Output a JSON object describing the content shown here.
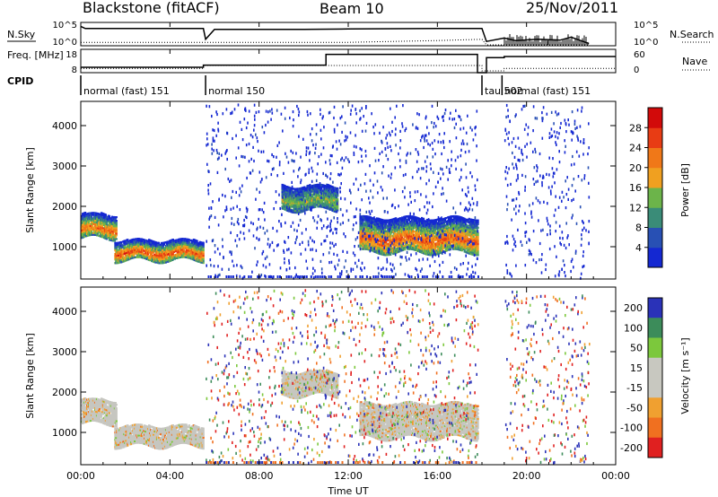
{
  "header": {
    "station": "Blackstone (fitACF)",
    "beam": "Beam 10",
    "date": "25/Nov/2011"
  },
  "colors": {
    "power_scale": [
      "#1428d2",
      "#2850b4",
      "#3a8c78",
      "#6cb44a",
      "#f0a020",
      "#f07818",
      "#e83c14",
      "#d20a0a"
    ],
    "velocity_scale": [
      "#2a32b8",
      "#3c8c5a",
      "#7cc83c",
      "#c8c8c0",
      "#c8c8c0",
      "#f0a030",
      "#f07020",
      "#e02020"
    ],
    "ground_scatter": "#c6c6c0"
  },
  "chart_data": [
    {
      "type": "line",
      "name": "noise_panel",
      "left_label": "N.Sky",
      "right_label": "N.Search",
      "left_ticks": [
        "10^5",
        "10^0"
      ],
      "right_ticks": [
        "10^5",
        "10^0"
      ],
      "series": [
        {
          "name": "N.Sky",
          "style": "solid",
          "x": [
            0.0,
            0.2,
            5.5,
            5.6,
            6.0,
            10.0,
            12.0,
            16.0,
            18.0,
            18.2,
            19.0,
            19.5,
            20.5,
            21.5,
            22.0,
            22.8
          ],
          "y": [
            4.5,
            4.0,
            4.0,
            1.5,
            3.8,
            3.8,
            3.9,
            4.0,
            4.0,
            1.0,
            1.8,
            1.2,
            1.5,
            1.3,
            2.0,
            0.5
          ]
        },
        {
          "name": "N.Search",
          "style": "dotted",
          "x": [
            0.0,
            12.0,
            16.0,
            18.0,
            18.2,
            22.8
          ],
          "y": [
            0.8,
            0.8,
            1.2,
            1.5,
            0.2,
            0.2
          ]
        }
      ],
      "xlim": [
        0,
        24
      ]
    },
    {
      "type": "line",
      "name": "freq_panel",
      "left_label": "Freq. [MHz]",
      "right_label": "Nave",
      "left_ticks": [
        "18",
        "8"
      ],
      "right_ticks": [
        "60",
        "0"
      ],
      "series": [
        {
          "name": "Freq",
          "style": "solid",
          "x": [
            0.0,
            5.5,
            5.5,
            11.0,
            11.0,
            17.8,
            17.8,
            18.2,
            18.2,
            19.0,
            19.0,
            22.8,
            22.8,
            24.0
          ],
          "y": [
            10.5,
            10.5,
            11.5,
            11.5,
            16.5,
            16.5,
            8.0,
            8.0,
            15.0,
            15.0,
            15.5,
            15.5,
            15.5,
            15.5
          ]
        },
        {
          "name": "Nave",
          "style": "dotted",
          "x": [
            0.0,
            5.5,
            5.5,
            18.0,
            18.0,
            19.0,
            19.0,
            24.0
          ],
          "y": [
            12,
            12,
            20,
            20,
            5,
            5,
            12,
            12
          ]
        }
      ],
      "xlim": [
        0,
        24
      ]
    },
    {
      "type": "table",
      "name": "cpid_panel",
      "label": "CPID",
      "segments": [
        {
          "start": 0.0,
          "end": 5.6,
          "text": "normal (fast) 151"
        },
        {
          "start": 5.6,
          "end": 18.0,
          "text": "normal 150"
        },
        {
          "start": 18.0,
          "end": 18.9,
          "text": "tau 502"
        },
        {
          "start": 18.9,
          "end": 24.0,
          "text": "normal (fast) 151"
        }
      ]
    },
    {
      "type": "heatmap",
      "name": "power_panel",
      "ylabel": "Slant Range [km]",
      "yticks": [
        1000,
        2000,
        3000,
        4000
      ],
      "ylim": [
        200,
        4600
      ],
      "xlim": [
        0,
        24
      ],
      "colorbar": {
        "label": "Power [dB]",
        "ticks": [
          4,
          8,
          12,
          16,
          20,
          24,
          28
        ],
        "range": [
          0,
          32
        ]
      },
      "echo_bands": [
        {
          "x0": 0.0,
          "x1": 1.6,
          "r0": 1200,
          "r1": 1800,
          "peak": 22
        },
        {
          "x0": 1.5,
          "x1": 5.5,
          "r0": 650,
          "r1": 1150,
          "peak": 24
        },
        {
          "x0": 9.0,
          "x1": 11.5,
          "r0": 1900,
          "r1": 2500,
          "peak": 12
        },
        {
          "x0": 12.5,
          "x1": 17.8,
          "r0": 850,
          "r1": 1700,
          "peak": 24
        }
      ],
      "noise_spans": [
        [
          5.6,
          17.8
        ],
        [
          19.0,
          22.8
        ]
      ]
    },
    {
      "type": "heatmap",
      "name": "velocity_panel",
      "ylabel": "Slant Range [km]",
      "yticks": [
        1000,
        2000,
        3000,
        4000
      ],
      "ylim": [
        200,
        4600
      ],
      "xlim": [
        0,
        24
      ],
      "colorbar": {
        "label": "Velocity [m s⁻¹]",
        "ticks": [
          "200",
          "100",
          "50",
          "15",
          "-15",
          "-50",
          "-100",
          "-200"
        ]
      },
      "echo_bands": [
        {
          "x0": 0.0,
          "x1": 1.6,
          "r0": 1200,
          "r1": 1800
        },
        {
          "x0": 1.5,
          "x1": 5.5,
          "r0": 650,
          "r1": 1150
        },
        {
          "x0": 9.0,
          "x1": 11.5,
          "r0": 1900,
          "r1": 2500
        },
        {
          "x0": 12.5,
          "x1": 17.8,
          "r0": 850,
          "r1": 1700
        }
      ],
      "noise_spans": [
        [
          5.6,
          17.8
        ],
        [
          19.0,
          22.8
        ]
      ]
    }
  ],
  "xaxis": {
    "label": "Time UT",
    "ticks": [
      "00:00",
      "04:00",
      "08:00",
      "12:00",
      "16:00",
      "20:00",
      "00:00"
    ]
  }
}
